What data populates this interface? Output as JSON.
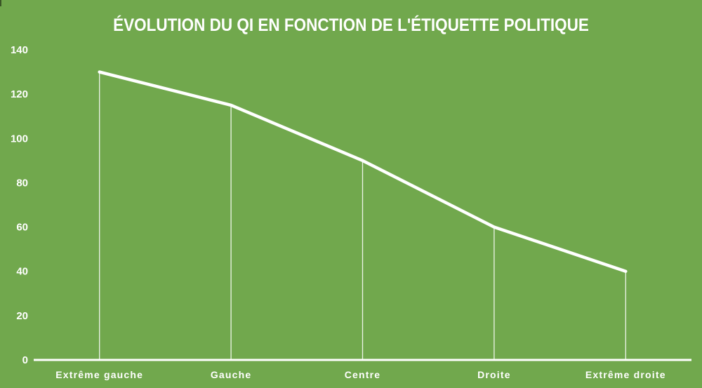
{
  "window": {
    "background": "#71a84d",
    "foreground": "#ffffff"
  },
  "chart_data": {
    "type": "line",
    "title": "ÉVOLUTION DU QI EN FONCTION DE L'ÉTIQUETTE POLITIQUE",
    "categories": [
      "Extrême gauche",
      "Gauche",
      "Centre",
      "Droite",
      "Extrême droite"
    ],
    "values": [
      130,
      115,
      90,
      60,
      40
    ],
    "xlabel": "",
    "ylabel": "",
    "ylim": [
      0,
      140
    ],
    "ytick_step": 20,
    "yticks": [
      0,
      20,
      40,
      60,
      80,
      100,
      120,
      140
    ],
    "grid": false,
    "legend": "none",
    "drop_lines": true,
    "line_color": "#ffffff",
    "text_color": "#ffffff",
    "background_color": "#71a84d"
  }
}
